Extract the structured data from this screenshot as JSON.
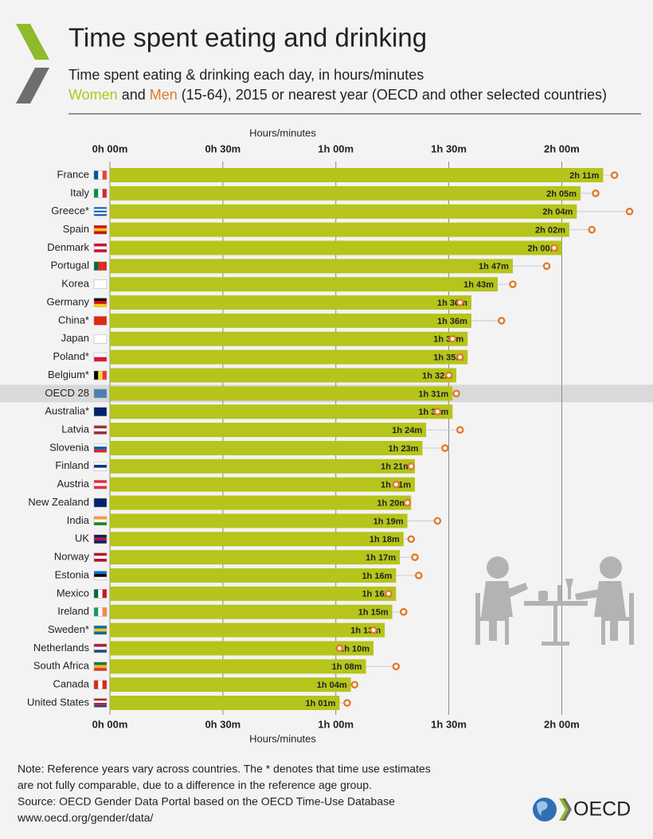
{
  "chart_data": {
    "type": "bar",
    "orientation": "horizontal",
    "title": "Time spent eating and drinking",
    "subtitle": "Time spent eating & drinking each day, in hours/minutes",
    "legend_joiner": "and",
    "legend_suffix": "(15-64), 2015 or nearest year (OECD and other selected countries)",
    "xlabel": "Hours/minutes",
    "categories": [
      "France",
      "Italy",
      "Greece*",
      "Spain",
      "Denmark",
      "Portugal",
      "Korea",
      "Germany",
      "China*",
      "Japan",
      "Poland*",
      "Belgium*",
      "OECD 28",
      "Australia*",
      "Latvia",
      "Slovenia",
      "Finland",
      "Austria",
      "New Zealand",
      "India",
      "UK",
      "Norway",
      "Estonia",
      "Mexico",
      "Ireland",
      "Sweden*",
      "Netherlands",
      "South Africa",
      "Canada",
      "United States"
    ],
    "series": [
      {
        "name": "Women",
        "color": "#b6c41b",
        "marker": "bar",
        "values": [
          131,
          125,
          124,
          122,
          120,
          107,
          103,
          96,
          96,
          95,
          95,
          92,
          91,
          91,
          84,
          83,
          81,
          81,
          80,
          79,
          78,
          77,
          76,
          76,
          75,
          73,
          70,
          68,
          64,
          61
        ],
        "value_labels": [
          "2h 11m",
          "2h 05m",
          "2h 04m",
          "2h 02m",
          "2h 00m",
          "1h 47m",
          "1h 43m",
          "1h 36m",
          "1h 36m",
          "1h 35m",
          "1h 35m",
          "1h 32m",
          "1h 31m",
          "1h 31m",
          "1h 24m",
          "1h 23m",
          "1h 21m",
          "1h 21m",
          "1h 20m",
          "1h 19m",
          "1h 18m",
          "1h 17m",
          "1h 16m",
          "1h 16m",
          "1h 15m",
          "1h 13m",
          "1h 10m",
          "1h 08m",
          "1h 04m",
          "1h 01m"
        ]
      },
      {
        "name": "Men",
        "color": "#e07b2c",
        "marker": "circle",
        "values": [
          134,
          129,
          138,
          128,
          118,
          116,
          107,
          93,
          104,
          91,
          93,
          90,
          92,
          87,
          93,
          89,
          80,
          76,
          79,
          87,
          80,
          81,
          82,
          74,
          78,
          70,
          61,
          76,
          65,
          63
        ]
      }
    ],
    "xlim": [
      0,
      140
    ],
    "xticks": [
      {
        "value": 0,
        "label": "0h 00m"
      },
      {
        "value": 30,
        "label": "0h 30m"
      },
      {
        "value": 60,
        "label": "1h 00m"
      },
      {
        "value": 90,
        "label": "1h 30m"
      },
      {
        "value": 120,
        "label": "2h 00m"
      }
    ],
    "grid": true
  },
  "footer": {
    "notes": [
      "Note: Reference years vary across countries. The * denotes that time use estimates",
      "are not fully comparable, due to a difference in the reference age group.",
      "Source: OECD Gender Data Portal based on the OECD Time-Use Database",
      "www.oecd.org/gender/data/"
    ],
    "logo": "OECD"
  }
}
